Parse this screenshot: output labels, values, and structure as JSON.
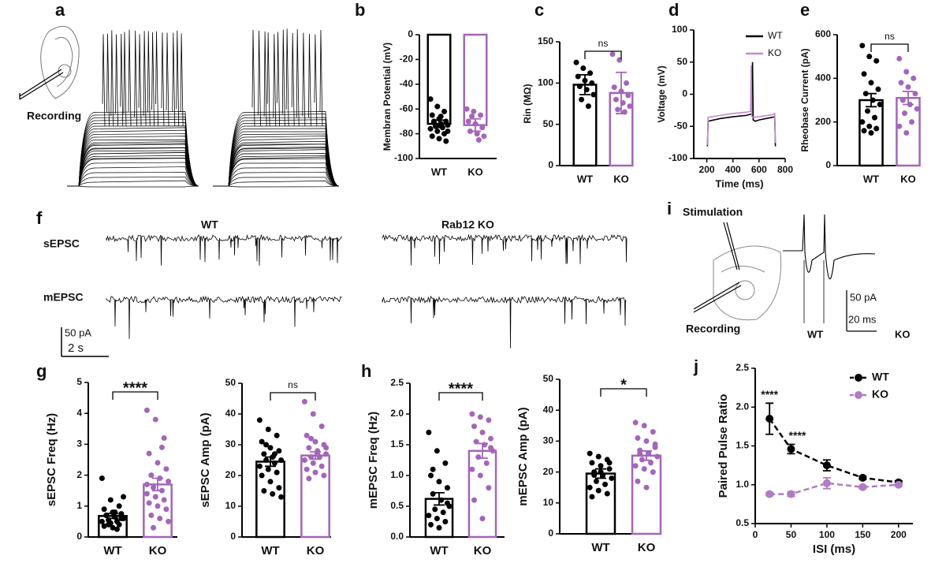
{
  "panel_texts": {
    "letters": [
      "a",
      "b",
      "c",
      "d",
      "e",
      "f",
      "g",
      "h",
      "i",
      "j"
    ],
    "a_recording": "Recording",
    "f_wt": "WT",
    "f_ko": "Rab12 KO",
    "f_sepsc": "sEPSC",
    "f_mepsc": "mEPSC",
    "f_scale_y": "50 pA",
    "f_scale_x": "2 s",
    "i_stimulation": "Stimulation",
    "i_recording": "Recording",
    "i_scale_y": "50 pA",
    "i_scale_x": "20 ms",
    "i_wt": "WT",
    "i_ko": "KO"
  },
  "chart_data": [
    {
      "type": "bar",
      "ylabel": "Membran Potential (mV)",
      "categories": [
        "WT",
        "KO"
      ],
      "colors": [
        "#000000",
        "#a366b8"
      ],
      "values": [
        -72,
        -73
      ],
      "errors": [
        3,
        5
      ],
      "points": [
        [
          -52,
          -58,
          -62,
          -65,
          -68,
          -70,
          -71,
          -72,
          -73,
          -74,
          -75,
          -76,
          -78,
          -80,
          -82,
          -84,
          -86,
          -70,
          -66,
          -78
        ],
        [
          -60,
          -62,
          -65,
          -70,
          -72,
          -75,
          -78,
          -80,
          -82,
          -66,
          -85
        ]
      ],
      "ylim": [
        -100,
        0
      ],
      "yticks": [
        -100,
        -80,
        -60,
        -40,
        -20,
        0
      ]
    },
    {
      "type": "bar",
      "ylabel": "Rin (MΩ)",
      "categories": [
        "WT",
        "KO"
      ],
      "colors": [
        "#000000",
        "#a366b8"
      ],
      "values": [
        98,
        88
      ],
      "errors": [
        12,
        25
      ],
      "points": [
        [
          125,
          118,
          112,
          108,
          103,
          100,
          96,
          92,
          86,
          80,
          72
        ],
        [
          135,
          128,
          100,
          95,
          90,
          85,
          80,
          76,
          72,
          68,
          65
        ]
      ],
      "ylim": [
        0,
        150
      ],
      "yticks": [
        0,
        50,
        100,
        150
      ],
      "annotation": "ns"
    },
    {
      "type": "line",
      "xlabel": "Time (ms)",
      "ylabel": "Voltage (mV)",
      "xlim": [
        100,
        800
      ],
      "xticks": [
        200,
        400,
        600,
        800
      ],
      "ylim": [
        -100,
        100
      ],
      "yticks": [
        -100,
        -50,
        0,
        50,
        100
      ],
      "series": [
        {
          "name": "WT",
          "color": "#000000",
          "x": [
            200,
            205,
            210,
            300,
            400,
            500,
            540,
            545,
            550,
            555,
            570,
            600,
            700,
            720,
            725,
            730
          ],
          "values": [
            -80,
            -80,
            -42,
            -38,
            -35,
            -33,
            -31,
            -31,
            50,
            -40,
            -42,
            -40,
            -36,
            -35,
            -80,
            -80
          ]
        },
        {
          "name": "KO",
          "color": "#c08ad0",
          "x": [
            200,
            205,
            210,
            300,
            400,
            500,
            530,
            535,
            540,
            545,
            560,
            600,
            700,
            720,
            725,
            730
          ],
          "values": [
            -78,
            -78,
            -36,
            -33,
            -30,
            -28,
            -27,
            -27,
            45,
            -35,
            -36,
            -35,
            -32,
            -30,
            -75,
            -75
          ]
        }
      ]
    },
    {
      "type": "bar",
      "ylabel": "Rheobase Current (pA)",
      "categories": [
        "WT",
        "KO"
      ],
      "colors": [
        "#000000",
        "#a366b8"
      ],
      "values": [
        300,
        310
      ],
      "errors": [
        30,
        30
      ],
      "points": [
        [
          550,
          500,
          480,
          420,
          380,
          350,
          330,
          300,
          280,
          250,
          220,
          200,
          180,
          170,
          160,
          150
        ],
        [
          490,
          430,
          400,
          380,
          360,
          330,
          300,
          280,
          260,
          240,
          200,
          180,
          150
        ]
      ],
      "ylim": [
        0,
        600
      ],
      "yticks": [
        0,
        200,
        400,
        600
      ],
      "annotation": "ns"
    },
    {
      "type": "bar",
      "ylabel": "sEPSC Freq (Hz)",
      "categories": [
        "WT",
        "KO"
      ],
      "colors": [
        "#000000",
        "#a366b8"
      ],
      "values": [
        0.68,
        1.7
      ],
      "errors": [
        0.08,
        0.2
      ],
      "points": [
        [
          1.9,
          1.2,
          1.0,
          0.9,
          0.8,
          0.75,
          0.7,
          0.65,
          0.6,
          0.55,
          0.5,
          0.5,
          0.45,
          0.4,
          0.35,
          0.3,
          0.6,
          0.7,
          0.8,
          1.3,
          0.4,
          0.25
        ],
        [
          4.1,
          3.8,
          3.2,
          2.7,
          2.4,
          2.2,
          2.0,
          1.9,
          1.8,
          1.6,
          1.5,
          1.4,
          1.3,
          1.2,
          1.1,
          1.0,
          0.9,
          0.7,
          0.6,
          0.5,
          0.3,
          2.9,
          1.7
        ]
      ],
      "ylim": [
        0,
        5
      ],
      "yticks": [
        0,
        1,
        2,
        3,
        4,
        5
      ],
      "annotation": "****"
    },
    {
      "type": "bar",
      "ylabel": "sEPSC Amp (pA)",
      "categories": [
        "WT",
        "KO"
      ],
      "colors": [
        "#000000",
        "#a366b8"
      ],
      "values": [
        24.5,
        26.5
      ],
      "errors": [
        1.5,
        1.2
      ],
      "points": [
        [
          38,
          35,
          33,
          31,
          29,
          28,
          27,
          26,
          25,
          25,
          24,
          23,
          22,
          21,
          20,
          18,
          16,
          15,
          14,
          13,
          30,
          27
        ],
        [
          44,
          40,
          36,
          33,
          31,
          30,
          29,
          28,
          27,
          26,
          26,
          25,
          24,
          23,
          22,
          21,
          20,
          19,
          27,
          29,
          32
        ]
      ],
      "ylim": [
        0,
        50
      ],
      "yticks": [
        0,
        10,
        20,
        30,
        40,
        50
      ],
      "annotation": "ns"
    },
    {
      "type": "bar",
      "ylabel": "mEPSC Freq (Hz)",
      "categories": [
        "WT",
        "KO"
      ],
      "colors": [
        "#000000",
        "#a366b8"
      ],
      "values": [
        0.62,
        1.4
      ],
      "errors": [
        0.1,
        0.12
      ],
      "points": [
        [
          1.7,
          1.4,
          1.2,
          1.0,
          0.9,
          0.8,
          0.7,
          0.6,
          0.5,
          0.45,
          0.4,
          0.35,
          0.3,
          0.25,
          0.2,
          0.15,
          0.55,
          1.1
        ],
        [
          2.0,
          1.95,
          1.9,
          1.8,
          1.7,
          1.6,
          1.55,
          1.5,
          1.4,
          1.3,
          1.2,
          1.1,
          1.0,
          0.8,
          0.6,
          0.3,
          1.45
        ]
      ],
      "ylim": [
        0,
        2.5
      ],
      "yticks": [
        {
          "value": 0,
          "label": "0.0"
        },
        0.5,
        {
          "value": 1,
          "label": "1.0"
        },
        1.5,
        {
          "value": 2,
          "label": "2.0"
        },
        2.5
      ],
      "annotation": "****"
    },
    {
      "type": "bar",
      "ylabel": "mEPSC Amp (pA)",
      "categories": [
        "WT",
        "KO"
      ],
      "colors": [
        "#000000",
        "#a366b8"
      ],
      "values": [
        19.5,
        25.3
      ],
      "errors": [
        1.5,
        1.5
      ],
      "points": [
        [
          26,
          25,
          24,
          23,
          22,
          21,
          20,
          19,
          18,
          17,
          16,
          15,
          14,
          13,
          12,
          20,
          23,
          19
        ],
        [
          36,
          35,
          33,
          31,
          30,
          28,
          27,
          26,
          25,
          24,
          23,
          22,
          21,
          20,
          17,
          15,
          29,
          26
        ]
      ],
      "ylim": [
        0,
        50
      ],
      "yticks": [
        0,
        10,
        20,
        30,
        40,
        50
      ],
      "annotation": "*"
    },
    {
      "type": "errorline",
      "xlabel": "ISI (ms)",
      "ylabel": "Paired Pulse Ratio",
      "xlim": [
        0,
        220
      ],
      "xticks": [
        0,
        50,
        100,
        150,
        200
      ],
      "ylim": [
        0.5,
        2.5
      ],
      "yticks": [
        0.5,
        {
          "value": 1,
          "label": "1.0"
        },
        1.5,
        {
          "value": 2,
          "label": "2.0"
        },
        2.5
      ],
      "annotations": [
        "****",
        "****"
      ],
      "series": [
        {
          "name": "WT",
          "color": "#000000",
          "x": [
            20,
            50,
            100,
            150,
            200
          ],
          "values": [
            1.85,
            1.46,
            1.25,
            1.09,
            1.03
          ],
          "errors": [
            0.2,
            0.06,
            0.07,
            0.02,
            0.02
          ]
        },
        {
          "name": "KO",
          "color": "#b07cc4",
          "x": [
            20,
            50,
            100,
            150,
            200
          ],
          "values": [
            0.88,
            0.88,
            1.02,
            0.97,
            1.0
          ],
          "errors": [
            0.02,
            0.03,
            0.07,
            0.02,
            0.02
          ]
        }
      ]
    }
  ]
}
